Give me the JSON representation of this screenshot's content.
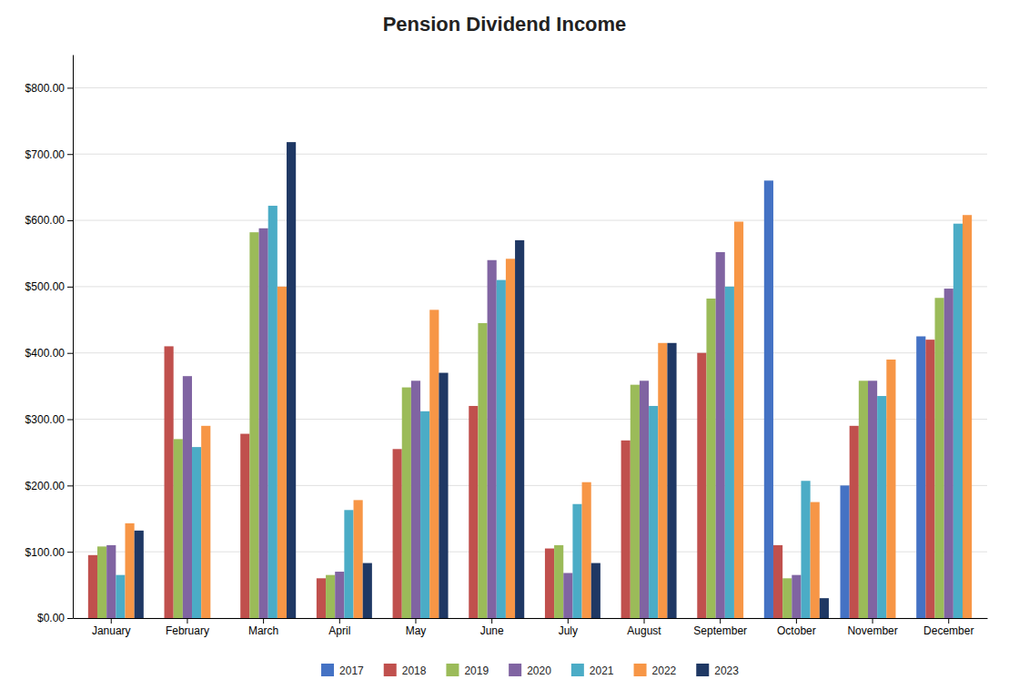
{
  "chart_data": {
    "type": "bar",
    "title": "Pension Dividend Income",
    "categories": [
      "January",
      "February",
      "March",
      "April",
      "May",
      "June",
      "July",
      "August",
      "September",
      "October",
      "November",
      "December"
    ],
    "series": [
      {
        "name": "2017",
        "color": "#4472C4",
        "values": [
          null,
          null,
          null,
          null,
          null,
          null,
          null,
          null,
          null,
          660,
          200,
          425
        ]
      },
      {
        "name": "2018",
        "color": "#C0504D",
        "values": [
          95,
          410,
          278,
          60,
          255,
          320,
          105,
          268,
          400,
          110,
          290,
          420
        ]
      },
      {
        "name": "2019",
        "color": "#9BBB59",
        "values": [
          108,
          270,
          582,
          65,
          348,
          445,
          110,
          352,
          482,
          60,
          358,
          483
        ]
      },
      {
        "name": "2020",
        "color": "#8064A2",
        "values": [
          110,
          365,
          588,
          70,
          358,
          540,
          68,
          358,
          552,
          65,
          358,
          497
        ]
      },
      {
        "name": "2021",
        "color": "#4BACC6",
        "values": [
          65,
          258,
          622,
          163,
          312,
          510,
          172,
          320,
          500,
          207,
          335,
          595
        ]
      },
      {
        "name": "2022",
        "color": "#F79646",
        "values": [
          143,
          290,
          500,
          178,
          465,
          542,
          205,
          415,
          598,
          175,
          390,
          608
        ]
      },
      {
        "name": "2023",
        "color": "#1F3864",
        "values": [
          132,
          null,
          718,
          83,
          370,
          570,
          83,
          415,
          null,
          30,
          null,
          null
        ]
      }
    ],
    "ylim": [
      0,
      850
    ],
    "yticks": [
      {
        "value": 0,
        "label": "$0.00"
      },
      {
        "value": 100,
        "label": "$100.00"
      },
      {
        "value": 200,
        "label": "$200.00"
      },
      {
        "value": 300,
        "label": "$300.00"
      },
      {
        "value": 400,
        "label": "$400.00"
      },
      {
        "value": 500,
        "label": "$500.00"
      },
      {
        "value": 600,
        "label": "$600.00"
      },
      {
        "value": 700,
        "label": "$700.00"
      },
      {
        "value": 800,
        "label": "$800.00"
      }
    ],
    "grid": true,
    "legend": "bottom"
  }
}
